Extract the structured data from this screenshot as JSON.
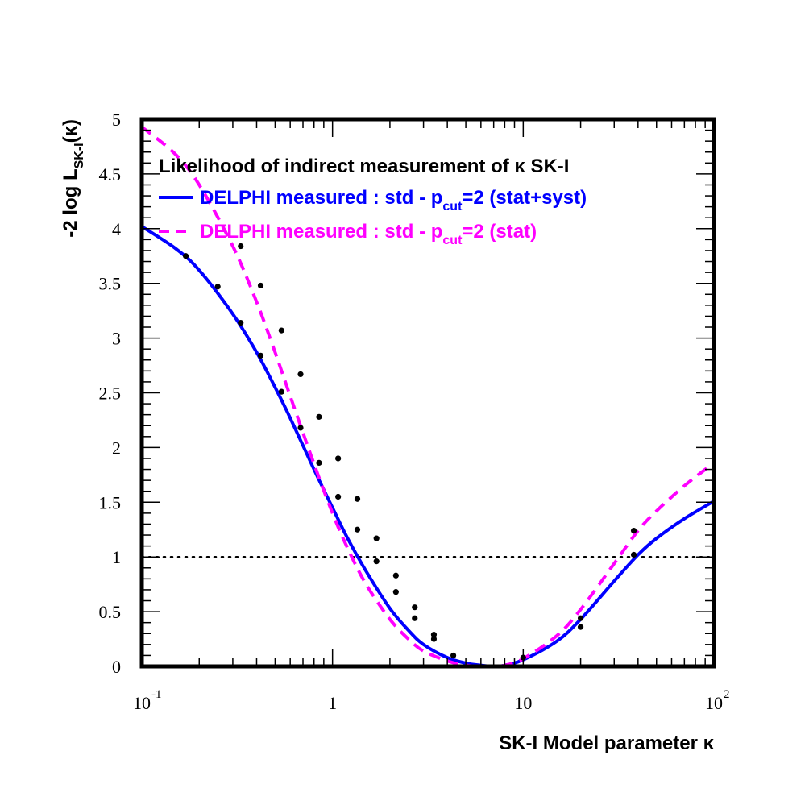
{
  "chart_data": {
    "type": "line",
    "title": "Likelihood of indirect measurement of κ SK-I",
    "xlabel": "SK-I Model parameter κ",
    "ylabel": {
      "main": "-2 log L",
      "sub": "SK-I",
      "suffix": "(κ)"
    },
    "x_scale": "log",
    "xlim": [
      0.1,
      100
    ],
    "ylim": [
      0,
      5
    ],
    "x_ticks": [
      {
        "value": 0.1,
        "base": "10",
        "exp": "-1"
      },
      {
        "value": 1,
        "base": "1",
        "exp": ""
      },
      {
        "value": 10,
        "base": "10",
        "exp": ""
      },
      {
        "value": 100,
        "base": "10",
        "exp": "2"
      }
    ],
    "y_ticks": [
      "0",
      "0.5",
      "1",
      "1.5",
      "2",
      "2.5",
      "3",
      "3.5",
      "4",
      "4.5",
      "5"
    ],
    "reference_line": {
      "y": 1,
      "style": "dotted"
    },
    "series": [
      {
        "name_parts": {
          "pre": "DELPHI measured : std - p",
          "sub": "cut",
          "post": "=2 (stat+syst)"
        },
        "color": "#0000ff",
        "style": "solid",
        "x": [
          0.1,
          0.15,
          0.2,
          0.3,
          0.4,
          0.5,
          0.6,
          0.8,
          1.0,
          1.2,
          1.5,
          2.0,
          2.5,
          3.0,
          4.0,
          5.0,
          6.0,
          7.0,
          8.0,
          10.0,
          15.0,
          20.0,
          30.0,
          40.0,
          50.0,
          70.0,
          100.0
        ],
        "y": [
          4.02,
          3.82,
          3.62,
          3.22,
          2.87,
          2.55,
          2.27,
          1.8,
          1.45,
          1.17,
          0.87,
          0.53,
          0.33,
          0.2,
          0.08,
          0.03,
          0.01,
          0.0,
          0.01,
          0.06,
          0.23,
          0.43,
          0.78,
          1.02,
          1.17,
          1.35,
          1.51
        ]
      },
      {
        "name_parts": {
          "pre": "DELPHI measured : std - p",
          "sub": "cut",
          "post": "=2 (stat)"
        },
        "color": "#ff00ff",
        "style": "dashed",
        "x": [
          0.1,
          0.15,
          0.2,
          0.3,
          0.4,
          0.5,
          0.6,
          0.8,
          1.0,
          1.2,
          1.5,
          2.0,
          2.5,
          3.0,
          4.0,
          5.0,
          6.0,
          7.0,
          8.0,
          10.0,
          15.0,
          20.0,
          30.0,
          40.0,
          50.0,
          70.0,
          100.0
        ],
        "y": [
          4.93,
          4.68,
          4.4,
          3.84,
          3.33,
          2.87,
          2.47,
          1.85,
          1.4,
          1.08,
          0.75,
          0.43,
          0.25,
          0.14,
          0.05,
          0.01,
          0.0,
          0.0,
          0.01,
          0.07,
          0.28,
          0.52,
          0.94,
          1.24,
          1.42,
          1.65,
          1.86
        ]
      }
    ],
    "markers": {
      "color": "#000000",
      "points": [
        [
          0.17,
          3.75
        ],
        [
          0.25,
          3.47
        ],
        [
          0.33,
          3.14
        ],
        [
          0.42,
          2.84
        ],
        [
          0.54,
          2.51
        ],
        [
          0.68,
          2.18
        ],
        [
          0.85,
          1.86
        ],
        [
          1.07,
          1.55
        ],
        [
          1.35,
          1.25
        ],
        [
          1.7,
          0.96
        ],
        [
          2.15,
          0.68
        ],
        [
          2.7,
          0.44
        ],
        [
          3.4,
          0.25
        ],
        [
          4.3,
          0.1
        ],
        [
          0.33,
          3.84
        ],
        [
          0.42,
          3.48
        ],
        [
          0.54,
          3.07
        ],
        [
          0.68,
          2.67
        ],
        [
          0.85,
          2.28
        ],
        [
          1.07,
          1.9
        ],
        [
          1.35,
          1.53
        ],
        [
          1.7,
          1.17
        ],
        [
          2.15,
          0.83
        ],
        [
          2.7,
          0.54
        ],
        [
          3.4,
          0.29
        ],
        [
          10,
          0.08
        ],
        [
          20,
          0.36
        ],
        [
          20,
          0.44
        ],
        [
          38,
          1.02
        ],
        [
          38,
          1.24
        ]
      ]
    },
    "legend_position": "top"
  }
}
